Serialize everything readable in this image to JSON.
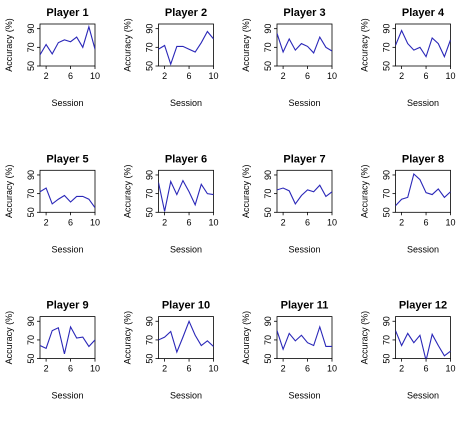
{
  "chart_data": [
    {
      "type": "line",
      "title": "Player 1",
      "xlabel": "Session",
      "ylabel": "Accuracy (%)",
      "x": [
        1,
        2,
        3,
        4,
        5,
        6,
        7,
        8,
        9,
        10
      ],
      "values": [
        62,
        73,
        63,
        75,
        78,
        76,
        81,
        70,
        92,
        68
      ],
      "ylim": [
        50,
        95
      ],
      "yticks": [
        50,
        70,
        90
      ],
      "xticks": [
        2,
        6,
        10
      ]
    },
    {
      "type": "line",
      "title": "Player 2",
      "xlabel": "Session",
      "ylabel": "Accuracy (%)",
      "x": [
        1,
        2,
        3,
        4,
        5,
        6,
        7,
        8,
        9,
        10
      ],
      "values": [
        68,
        72,
        52,
        71,
        71,
        68,
        65,
        75,
        87,
        79
      ],
      "ylim": [
        50,
        95
      ],
      "yticks": [
        50,
        70,
        90
      ],
      "xticks": [
        2,
        6,
        10
      ]
    },
    {
      "type": "line",
      "title": "Player 3",
      "xlabel": "Session",
      "ylabel": "Accuracy (%)",
      "x": [
        1,
        2,
        3,
        4,
        5,
        6,
        7,
        8,
        9,
        10
      ],
      "values": [
        85,
        65,
        79,
        67,
        74,
        71,
        64,
        81,
        70,
        66
      ],
      "ylim": [
        50,
        95
      ],
      "yticks": [
        50,
        70,
        90
      ],
      "xticks": [
        2,
        6,
        10
      ]
    },
    {
      "type": "line",
      "title": "Player 4",
      "xlabel": "Session",
      "ylabel": "Accuracy (%)",
      "x": [
        1,
        2,
        3,
        4,
        5,
        6,
        7,
        8,
        9,
        10
      ],
      "values": [
        72,
        88,
        74,
        67,
        70,
        60,
        80,
        74,
        60,
        78
      ],
      "ylim": [
        50,
        95
      ],
      "yticks": [
        50,
        70,
        90
      ],
      "xticks": [
        2,
        6,
        10
      ]
    },
    {
      "type": "line",
      "title": "Player 5",
      "xlabel": "Session",
      "ylabel": "Accuracy (%)",
      "x": [
        1,
        2,
        3,
        4,
        5,
        6,
        7,
        8,
        9,
        10
      ],
      "values": [
        72,
        76,
        59,
        64,
        68,
        61,
        67,
        67,
        64,
        55
      ],
      "ylim": [
        50,
        95
      ],
      "yticks": [
        50,
        70,
        90
      ],
      "xticks": [
        2,
        6,
        10
      ]
    },
    {
      "type": "line",
      "title": "Player 6",
      "xlabel": "Session",
      "ylabel": "Accuracy (%)",
      "x": [
        1,
        2,
        3,
        4,
        5,
        6,
        7,
        8,
        9,
        10
      ],
      "values": [
        82,
        51,
        83,
        69,
        84,
        72,
        58,
        80,
        70,
        69
      ],
      "ylim": [
        50,
        95
      ],
      "yticks": [
        50,
        70,
        90
      ],
      "xticks": [
        2,
        6,
        10
      ]
    },
    {
      "type": "line",
      "title": "Player 7",
      "xlabel": "Session",
      "ylabel": "Accuracy (%)",
      "x": [
        1,
        2,
        3,
        4,
        5,
        6,
        7,
        8,
        9,
        10
      ],
      "values": [
        74,
        76,
        73,
        59,
        68,
        74,
        72,
        79,
        67,
        72
      ],
      "ylim": [
        50,
        95
      ],
      "yticks": [
        50,
        70,
        90
      ],
      "xticks": [
        2,
        6,
        10
      ]
    },
    {
      "type": "line",
      "title": "Player 8",
      "xlabel": "Session",
      "ylabel": "Accuracy (%)",
      "x": [
        1,
        2,
        3,
        4,
        5,
        6,
        7,
        8,
        9,
        10
      ],
      "values": [
        57,
        64,
        66,
        91,
        85,
        71,
        69,
        75,
        66,
        72
      ],
      "ylim": [
        50,
        95
      ],
      "yticks": [
        50,
        70,
        90
      ],
      "xticks": [
        2,
        6,
        10
      ]
    },
    {
      "type": "line",
      "title": "Player 9",
      "xlabel": "Session",
      "ylabel": "Accuracy (%)",
      "x": [
        1,
        2,
        3,
        4,
        5,
        6,
        7,
        8,
        9,
        10
      ],
      "values": [
        64,
        61,
        80,
        83,
        55,
        84,
        72,
        73,
        63,
        70
      ],
      "ylim": [
        50,
        95
      ],
      "yticks": [
        50,
        70,
        90
      ],
      "xticks": [
        2,
        6,
        10
      ]
    },
    {
      "type": "line",
      "title": "Player 10",
      "xlabel": "Session",
      "ylabel": "Accuracy (%)",
      "x": [
        1,
        2,
        3,
        4,
        5,
        6,
        7,
        8,
        9,
        10
      ],
      "values": [
        70,
        73,
        79,
        57,
        73,
        90,
        75,
        64,
        69,
        63
      ],
      "ylim": [
        50,
        95
      ],
      "yticks": [
        50,
        70,
        90
      ],
      "xticks": [
        2,
        6,
        10
      ]
    },
    {
      "type": "line",
      "title": "Player 11",
      "xlabel": "Session",
      "ylabel": "Accuracy (%)",
      "x": [
        1,
        2,
        3,
        4,
        5,
        6,
        7,
        8,
        9,
        10
      ],
      "values": [
        80,
        60,
        77,
        69,
        75,
        67,
        64,
        84,
        63,
        63
      ],
      "ylim": [
        50,
        95
      ],
      "yticks": [
        50,
        70,
        90
      ],
      "xticks": [
        2,
        6,
        10
      ]
    },
    {
      "type": "line",
      "title": "Player 12",
      "xlabel": "Session",
      "ylabel": "Accuracy (%)",
      "x": [
        1,
        2,
        3,
        4,
        5,
        6,
        7,
        8,
        9,
        10
      ],
      "values": [
        80,
        64,
        77,
        67,
        75,
        48,
        76,
        64,
        53,
        58
      ],
      "ylim": [
        50,
        95
      ],
      "yticks": [
        50,
        70,
        90
      ],
      "xticks": [
        2,
        6,
        10
      ]
    }
  ],
  "colors": {
    "line": "#2a27b8",
    "axis": "#000000",
    "background": "#ffffff"
  }
}
